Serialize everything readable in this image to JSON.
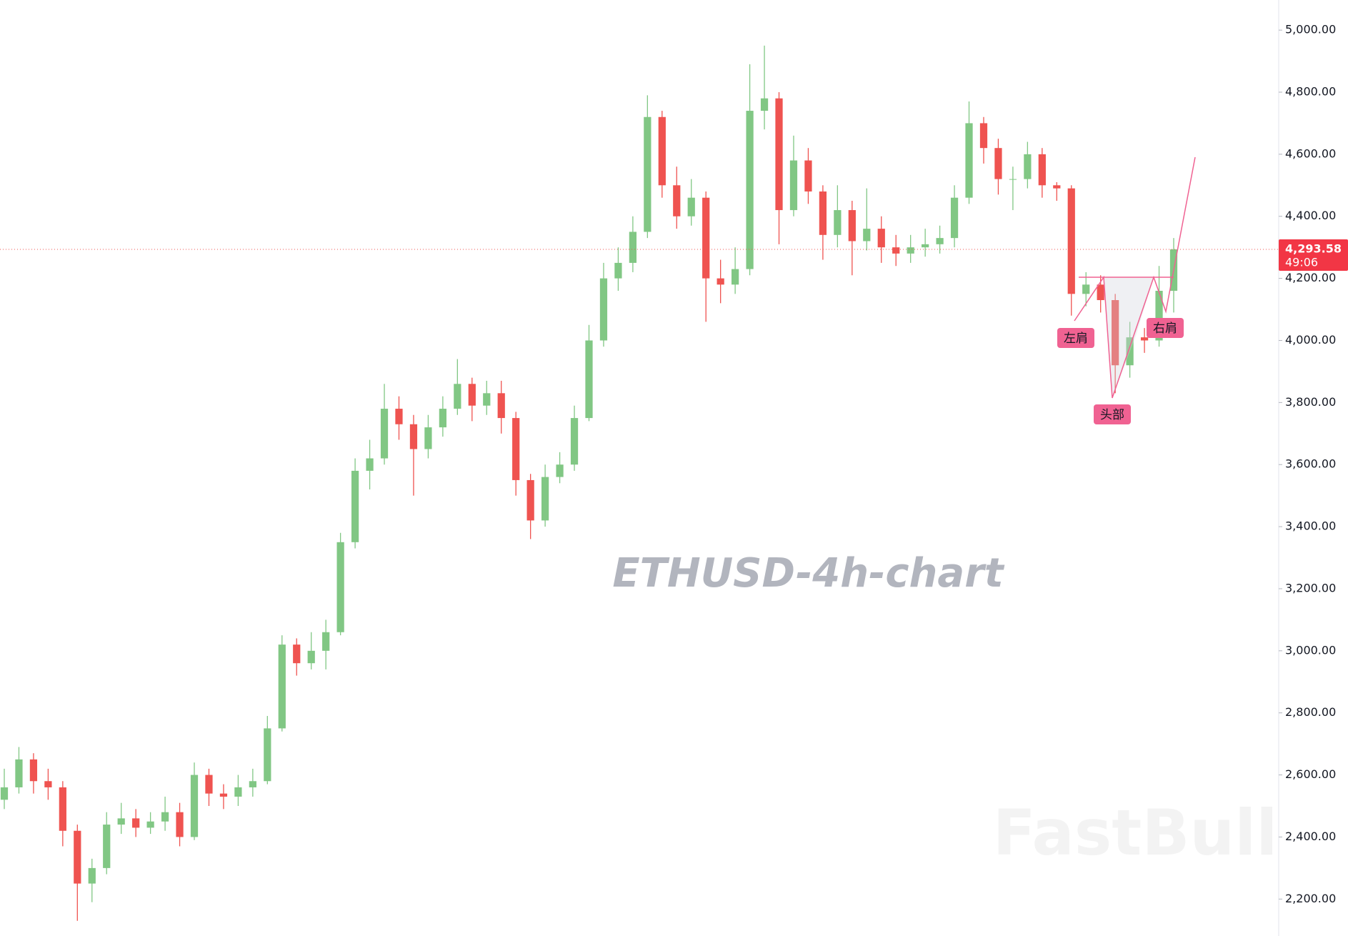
{
  "chart_data": {
    "type": "candlestick",
    "watermark": "ETHUSD-4h-chart",
    "brand": "FastBull",
    "up_color": "#81c784",
    "down_color": "#ef5350",
    "ylim": [
      2081,
      5097
    ],
    "yticks": [
      {
        "value": 2200,
        "label": "2,200.00"
      },
      {
        "value": 2400,
        "label": "2,400.00"
      },
      {
        "value": 2600,
        "label": "2,600.00"
      },
      {
        "value": 2800,
        "label": "2,800.00"
      },
      {
        "value": 3000,
        "label": "3,000.00"
      },
      {
        "value": 3200,
        "label": "3,200.00"
      },
      {
        "value": 3400,
        "label": "3,400.00"
      },
      {
        "value": 3600,
        "label": "3,600.00"
      },
      {
        "value": 3800,
        "label": "3,800.00"
      },
      {
        "value": 4000,
        "label": "4,000.00"
      },
      {
        "value": 4200,
        "label": "4,200.00"
      },
      {
        "value": 4400,
        "label": "4,400.00"
      },
      {
        "value": 4600,
        "label": "4,600.00"
      },
      {
        "value": 4800,
        "label": "4,800.00"
      },
      {
        "value": 5000,
        "label": "5,000.00"
      }
    ],
    "last_price": {
      "value": 4293.58,
      "label": "4,293.58"
    },
    "countdown": "49:06",
    "annotations": [
      {
        "text": "左肩"
      },
      {
        "text": "头部"
      },
      {
        "text": "右肩"
      }
    ],
    "open": [
      2520,
      2560,
      2650,
      2580,
      2560,
      2420,
      2250,
      2300,
      2440,
      2460,
      2430,
      2450,
      2480,
      2400,
      2600,
      2540,
      2530,
      2560,
      2580,
      2750,
      3020,
      2960,
      3000,
      3060,
      3350,
      3580,
      3620,
      3780,
      3730,
      3650,
      3720,
      3780,
      3860,
      3790,
      3830,
      3750,
      3550,
      3420,
      3560,
      3600,
      3750,
      4000,
      4200,
      4250,
      4350,
      4720,
      4500,
      4400,
      4460,
      4200,
      4180,
      4230,
      4740,
      4780,
      4420,
      4580,
      4480,
      4340,
      4420,
      4320,
      4360,
      4300,
      4280,
      4300,
      4310,
      4330,
      4460,
      4700,
      4620,
      4520,
      4520,
      4600,
      4500,
      4490,
      4150,
      4180,
      4130,
      3920,
      4010,
      4000,
      4160
    ],
    "high": [
      2620,
      2690,
      2670,
      2620,
      2580,
      2440,
      2330,
      2480,
      2510,
      2490,
      2480,
      2530,
      2510,
      2640,
      2620,
      2570,
      2600,
      2620,
      2790,
      3050,
      3040,
      3060,
      3100,
      3380,
      3620,
      3680,
      3860,
      3820,
      3760,
      3760,
      3820,
      3940,
      3880,
      3870,
      3870,
      3770,
      3570,
      3600,
      3640,
      3790,
      4050,
      4250,
      4300,
      4400,
      4790,
      4740,
      4560,
      4520,
      4480,
      4260,
      4300,
      4890,
      4950,
      4800,
      4660,
      4620,
      4500,
      4500,
      4450,
      4490,
      4400,
      4340,
      4340,
      4360,
      4370,
      4500,
      4770,
      4720,
      4650,
      4560,
      4640,
      4620,
      4510,
      4500,
      4220,
      4210,
      4150,
      4060,
      4040,
      4240,
      4330
    ],
    "low": [
      2490,
      2540,
      2540,
      2520,
      2370,
      2130,
      2190,
      2280,
      2410,
      2400,
      2410,
      2420,
      2370,
      2390,
      2500,
      2490,
      2500,
      2530,
      2570,
      2740,
      2920,
      2940,
      2940,
      3050,
      3330,
      3520,
      3600,
      3680,
      3500,
      3620,
      3690,
      3760,
      3740,
      3760,
      3700,
      3500,
      3360,
      3400,
      3540,
      3580,
      3740,
      3980,
      4160,
      4220,
      4330,
      4460,
      4360,
      4370,
      4060,
      4120,
      4150,
      4210,
      4680,
      4310,
      4400,
      4440,
      4260,
      4300,
      4210,
      4290,
      4250,
      4240,
      4250,
      4270,
      4280,
      4300,
      4440,
      4570,
      4470,
      4420,
      4490,
      4460,
      4450,
      4080,
      4110,
      4090,
      3830,
      3880,
      3960,
      3980,
      4090
    ],
    "close": [
      2560,
      2650,
      2580,
      2560,
      2420,
      2250,
      2300,
      2440,
      2460,
      2430,
      2450,
      2480,
      2400,
      2600,
      2540,
      2530,
      2560,
      2580,
      2750,
      3020,
      2960,
      3000,
      3060,
      3350,
      3580,
      3620,
      3780,
      3730,
      3650,
      3720,
      3780,
      3860,
      3790,
      3830,
      3750,
      3550,
      3420,
      3560,
      3600,
      3750,
      4000,
      4200,
      4250,
      4350,
      4720,
      4500,
      4400,
      4460,
      4200,
      4180,
      4230,
      4740,
      4780,
      4420,
      4580,
      4480,
      4340,
      4420,
      4320,
      4360,
      4300,
      4280,
      4300,
      4310,
      4330,
      4460,
      4700,
      4620,
      4520,
      4520,
      4600,
      4500,
      4490,
      4150,
      4180,
      4130,
      3920,
      4010,
      4000,
      4160,
      4293.58
    ]
  }
}
